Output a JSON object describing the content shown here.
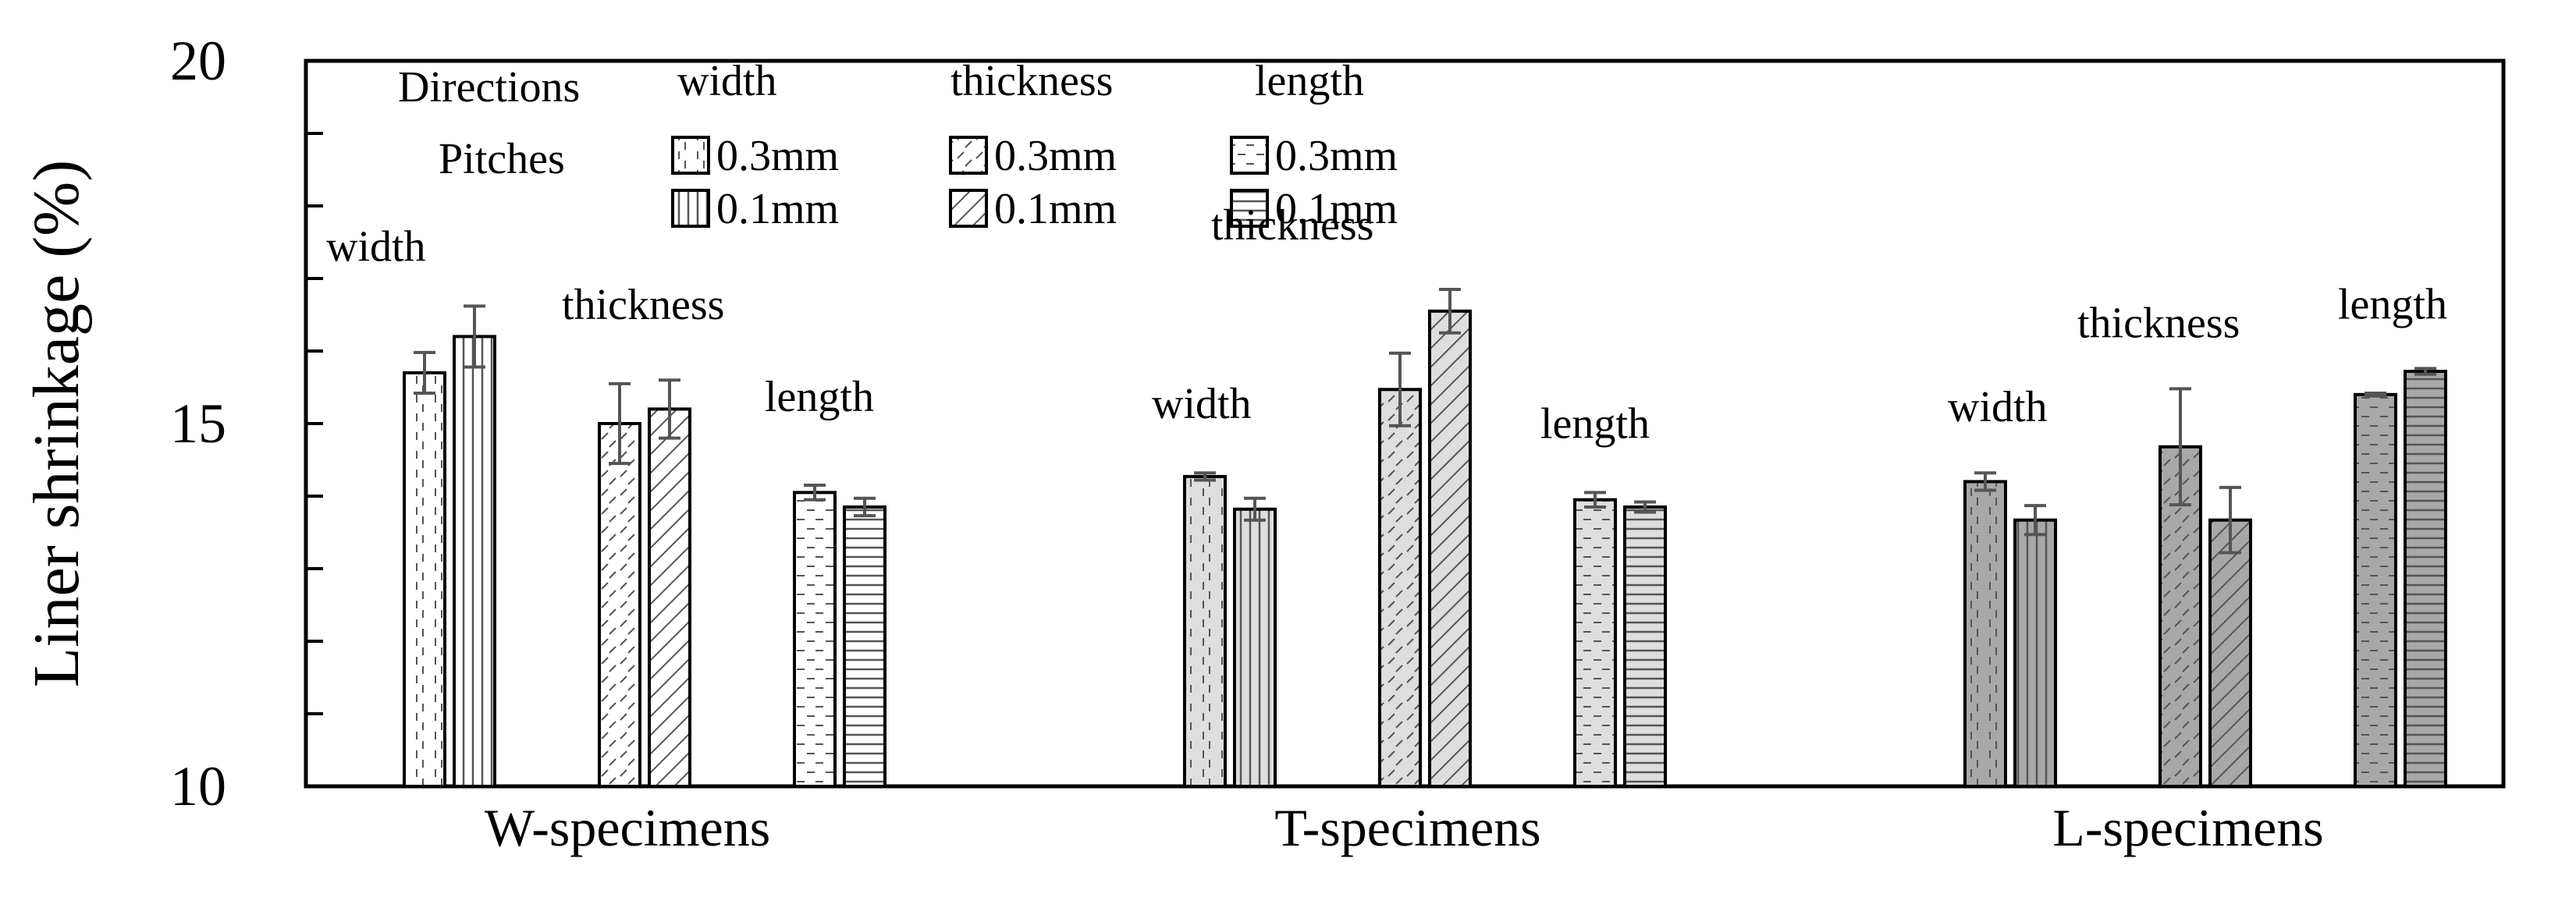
{
  "chart_data": {
    "type": "bar",
    "ylabel": "Liner shrinkage  (%)",
    "xlabel": "",
    "ylim": [
      10,
      20
    ],
    "y_ticks": [
      "10",
      "15",
      "20"
    ],
    "grid": false,
    "legend": {
      "placement": "top-left",
      "row_labels": [
        "Directions",
        "Pitches"
      ],
      "columns": [
        {
          "direction": "width",
          "items": [
            "0.3mm",
            "0.1mm"
          ]
        },
        {
          "direction": "thickness",
          "items": [
            "0.3mm",
            "0.1mm"
          ]
        },
        {
          "direction": "length",
          "items": [
            "0.3mm",
            "0.1mm"
          ]
        }
      ]
    },
    "groups": [
      {
        "name": "W-specimens",
        "directions": [
          {
            "label": "width",
            "bars": [
              {
                "pitch": "0.3mm",
                "value": 15.7,
                "err": 0.28
              },
              {
                "pitch": "0.1mm",
                "value": 16.2,
                "err": 0.42
              }
            ]
          },
          {
            "label": "thickness",
            "bars": [
              {
                "pitch": "0.3mm",
                "value": 15.0,
                "err": 0.55
              },
              {
                "pitch": "0.1mm",
                "value": 15.2,
                "err": 0.4
              }
            ]
          },
          {
            "label": "length",
            "bars": [
              {
                "pitch": "0.3mm",
                "value": 14.05,
                "err": 0.1
              },
              {
                "pitch": "0.1mm",
                "value": 13.85,
                "err": 0.12
              }
            ]
          }
        ]
      },
      {
        "name": "T-specimens",
        "directions": [
          {
            "label": "width",
            "bars": [
              {
                "pitch": "0.3mm",
                "value": 14.27,
                "err": 0.05
              },
              {
                "pitch": "0.1mm",
                "value": 13.82,
                "err": 0.15
              }
            ]
          },
          {
            "label": "thickness",
            "bars": [
              {
                "pitch": "0.3mm",
                "value": 15.47,
                "err": 0.5
              },
              {
                "pitch": "0.1mm",
                "value": 16.55,
                "err": 0.3
              }
            ]
          },
          {
            "label": "length",
            "bars": [
              {
                "pitch": "0.3mm",
                "value": 13.95,
                "err": 0.1
              },
              {
                "pitch": "0.1mm",
                "value": 13.85,
                "err": 0.07
              }
            ]
          }
        ]
      },
      {
        "name": "L-specimens",
        "directions": [
          {
            "label": "width",
            "bars": [
              {
                "pitch": "0.3mm",
                "value": 14.2,
                "err": 0.12
              },
              {
                "pitch": "0.1mm",
                "value": 13.67,
                "err": 0.2
              }
            ]
          },
          {
            "label": "thickness",
            "bars": [
              {
                "pitch": "0.3mm",
                "value": 14.68,
                "err": 0.8
              },
              {
                "pitch": "0.1mm",
                "value": 13.67,
                "err": 0.45
              }
            ]
          },
          {
            "label": "length",
            "bars": [
              {
                "pitch": "0.3mm",
                "value": 15.4,
                "err": 0.02
              },
              {
                "pitch": "0.1mm",
                "value": 15.72,
                "err": 0.04
              }
            ]
          }
        ]
      }
    ],
    "colors": {
      "specimen_fills": [
        "#ffffff",
        "#dedede",
        "#a8a8a8"
      ],
      "outline": "#000000",
      "pattern": "#555555",
      "error_bar": "#555555"
    }
  }
}
